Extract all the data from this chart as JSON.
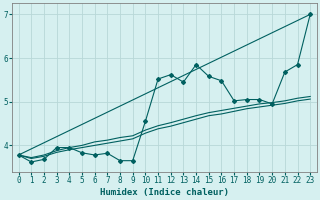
{
  "xlabel": "Humidex (Indice chaleur)",
  "bg_color": "#d6f0f0",
  "grid_color": "#b8d8d8",
  "line_color": "#006060",
  "spine_color": "#808080",
  "xlim": [
    -0.5,
    23.5
  ],
  "ylim": [
    3.4,
    7.25
  ],
  "xticks": [
    0,
    1,
    2,
    3,
    4,
    5,
    6,
    7,
    8,
    9,
    10,
    11,
    12,
    13,
    14,
    15,
    16,
    17,
    18,
    19,
    20,
    21,
    22,
    23
  ],
  "yticks": [
    4,
    5,
    6,
    7
  ],
  "line1_x": [
    0,
    1,
    2,
    3,
    4,
    5,
    6,
    7,
    8,
    9,
    10,
    11,
    12,
    13,
    14,
    15,
    16,
    17,
    18,
    19,
    20,
    21,
    22,
    23
  ],
  "line1_y": [
    3.78,
    3.62,
    3.68,
    3.95,
    3.95,
    3.83,
    3.78,
    3.82,
    3.65,
    3.65,
    4.55,
    5.52,
    5.62,
    5.45,
    5.85,
    5.58,
    5.48,
    5.02,
    5.05,
    5.05,
    4.95,
    5.68,
    5.85,
    7.0
  ],
  "line2_x": [
    0,
    23
  ],
  "line2_y": [
    3.78,
    7.0
  ],
  "line3_x": [
    0,
    1,
    2,
    3,
    4,
    5,
    6,
    7,
    8,
    9,
    10,
    11,
    12,
    13,
    14,
    15,
    16,
    17,
    18,
    19,
    20,
    21,
    22,
    23
  ],
  "line3_y": [
    3.78,
    3.72,
    3.78,
    3.88,
    3.95,
    4.0,
    4.08,
    4.12,
    4.18,
    4.22,
    4.35,
    4.45,
    4.52,
    4.6,
    4.68,
    4.75,
    4.8,
    4.85,
    4.9,
    4.95,
    4.98,
    5.02,
    5.08,
    5.12
  ],
  "line4_x": [
    0,
    1,
    2,
    3,
    4,
    5,
    6,
    7,
    8,
    9,
    10,
    11,
    12,
    13,
    14,
    15,
    16,
    17,
    18,
    19,
    20,
    21,
    22,
    23
  ],
  "line4_y": [
    3.78,
    3.7,
    3.75,
    3.84,
    3.9,
    3.95,
    4.0,
    4.05,
    4.1,
    4.15,
    4.28,
    4.38,
    4.44,
    4.52,
    4.6,
    4.68,
    4.72,
    4.78,
    4.84,
    4.88,
    4.92,
    4.96,
    5.02,
    5.06
  ]
}
